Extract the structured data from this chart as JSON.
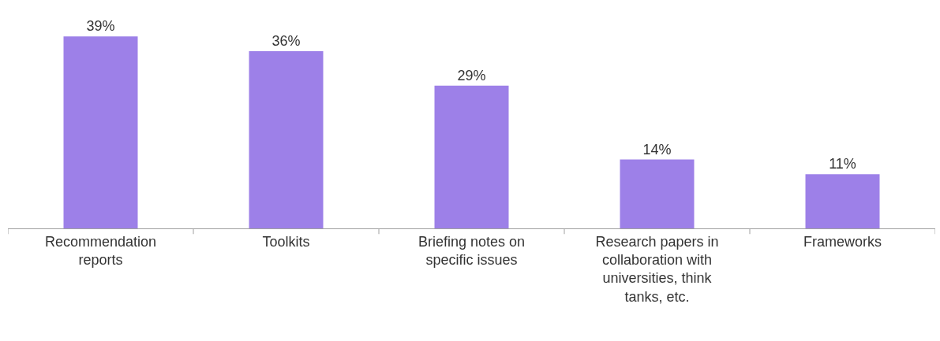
{
  "chart_data": {
    "type": "bar",
    "categories": [
      "Recommendation reports",
      "Toolkits",
      "Briefing notes on specific issues",
      "Research papers in collaboration with universities, think tanks, etc.",
      "Frameworks"
    ],
    "values": [
      39,
      36,
      29,
      14,
      11
    ],
    "value_labels": [
      "39%",
      "36%",
      "29%",
      "14%",
      "11%"
    ],
    "color": "#9d80e8",
    "legend": false
  }
}
